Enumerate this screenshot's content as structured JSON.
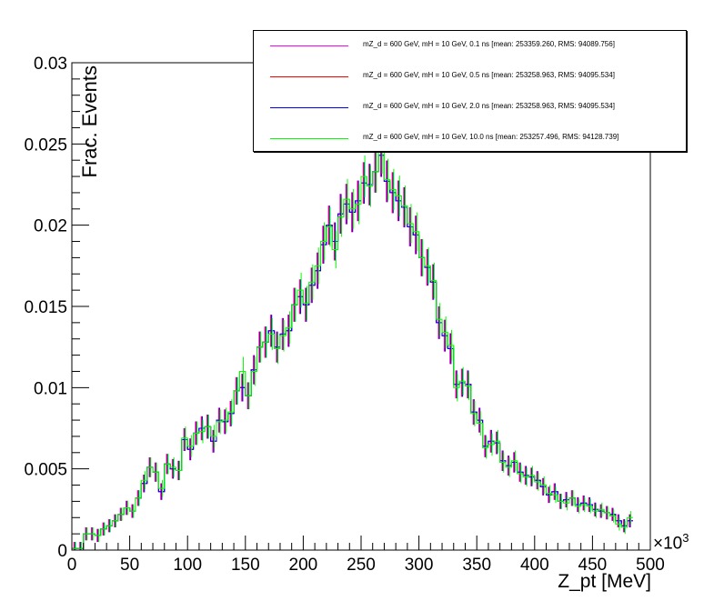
{
  "chart_data": {
    "type": "histogram",
    "xlabel": "Z_pt [MeV]",
    "ylabel": "Frac. Events",
    "x_exponent_label": "×10",
    "x_exponent_power": "3",
    "xlim": [
      0,
      500
    ],
    "ylim": [
      0,
      0.03
    ],
    "bin_width": 5,
    "x_ticks": [
      "0",
      "50",
      "100",
      "150",
      "200",
      "250",
      "300",
      "350",
      "400",
      "450",
      "500"
    ],
    "y_ticks": [
      "0",
      "0.005",
      "0.01",
      "0.015",
      "0.02",
      "0.025",
      "0.03"
    ],
    "legend": [
      {
        "label": "mZ_d = 600 GeV, mH = 10 GeV, 0.1 ns [mean: 253359.260, RMS: 94089.756]",
        "color": "#ff00ff"
      },
      {
        "label": "mZ_d = 600 GeV, mH = 10 GeV, 0.5 ns [mean: 253258.963, RMS: 94095.534]",
        "color": "#ff0000"
      },
      {
        "label": "mZ_d = 600 GeV, mH = 10 GeV, 2.0 ns [mean: 253258.963, RMS: 94095.534]",
        "color": "#0000ff"
      },
      {
        "label": "mZ_d = 600 GeV, mH = 10 GeV, 10.0 ns [mean: 253257.496, RMS: 94128.739]",
        "color": "#00ff00"
      }
    ],
    "series": [
      {
        "name": "0.1 ns",
        "color": "#ff00ff",
        "values": [
          0.0001,
          0.0001,
          0.001,
          0.001,
          0.0009,
          0.0013,
          0.0015,
          0.0018,
          0.0022,
          0.0026,
          0.0024,
          0.0032,
          0.0041,
          0.0051,
          0.0048,
          0.0036,
          0.0053,
          0.005,
          0.0049,
          0.0068,
          0.0062,
          0.0072,
          0.0075,
          0.0076,
          0.0067,
          0.008,
          0.0079,
          0.0084,
          0.0098,
          0.01,
          0.0095,
          0.0111,
          0.0125,
          0.0128,
          0.0135,
          0.0125,
          0.0133,
          0.0135,
          0.0151,
          0.0156,
          0.0151,
          0.0163,
          0.0172,
          0.0188,
          0.02,
          0.019,
          0.0207,
          0.0213,
          0.0208,
          0.0215,
          0.0226,
          0.0225,
          0.0233,
          0.0243,
          0.0227,
          0.022,
          0.0215,
          0.0211,
          0.0199,
          0.0194,
          0.018,
          0.0174,
          0.0165,
          0.014,
          0.0132,
          0.0124,
          0.0102,
          0.0103,
          0.0102,
          0.0085,
          0.008,
          0.0064,
          0.0067,
          0.0066,
          0.0055,
          0.0052,
          0.0054,
          0.0048,
          0.0046,
          0.0045,
          0.0043,
          0.0039,
          0.0034,
          0.0036,
          0.003,
          0.0031,
          0.0032,
          0.0028,
          0.0029,
          0.0028,
          0.0025,
          0.0024,
          0.0023,
          0.0022,
          0.0018,
          0.0015,
          0.0018
        ]
      },
      {
        "name": "0.5 ns",
        "color": "#ff0000",
        "values": [
          0.0001,
          0.0001,
          0.001,
          0.001,
          0.0009,
          0.0013,
          0.0015,
          0.0018,
          0.0022,
          0.0026,
          0.0024,
          0.0032,
          0.0041,
          0.0051,
          0.0048,
          0.0036,
          0.0053,
          0.005,
          0.0049,
          0.0068,
          0.0062,
          0.0072,
          0.0075,
          0.0076,
          0.0067,
          0.008,
          0.0079,
          0.0084,
          0.0098,
          0.01,
          0.0095,
          0.0111,
          0.0125,
          0.0128,
          0.0135,
          0.0125,
          0.0133,
          0.0135,
          0.0151,
          0.0156,
          0.0151,
          0.0163,
          0.0172,
          0.0188,
          0.02,
          0.019,
          0.0207,
          0.0213,
          0.0208,
          0.0215,
          0.0226,
          0.0225,
          0.0233,
          0.0243,
          0.0227,
          0.022,
          0.0215,
          0.0211,
          0.0199,
          0.0194,
          0.018,
          0.0174,
          0.0165,
          0.014,
          0.0132,
          0.0124,
          0.0102,
          0.0103,
          0.0102,
          0.0085,
          0.008,
          0.0064,
          0.0067,
          0.0066,
          0.0055,
          0.0052,
          0.0054,
          0.0048,
          0.0046,
          0.0045,
          0.0043,
          0.0039,
          0.0034,
          0.0036,
          0.003,
          0.0031,
          0.0032,
          0.0028,
          0.0029,
          0.0028,
          0.0025,
          0.0024,
          0.0023,
          0.0022,
          0.0018,
          0.0015,
          0.0018
        ]
      },
      {
        "name": "2.0 ns",
        "color": "#0000ff",
        "values": [
          0.0001,
          0.0001,
          0.001,
          0.001,
          0.0009,
          0.0013,
          0.0015,
          0.0018,
          0.0022,
          0.0026,
          0.0024,
          0.0032,
          0.0041,
          0.0051,
          0.0048,
          0.0036,
          0.0053,
          0.005,
          0.0049,
          0.0068,
          0.0062,
          0.0072,
          0.0075,
          0.0076,
          0.0067,
          0.008,
          0.0079,
          0.0084,
          0.0098,
          0.01,
          0.0095,
          0.0111,
          0.0125,
          0.0128,
          0.0135,
          0.0125,
          0.0133,
          0.0135,
          0.0151,
          0.0156,
          0.0151,
          0.0163,
          0.0172,
          0.0188,
          0.02,
          0.019,
          0.0207,
          0.0213,
          0.0208,
          0.0215,
          0.0226,
          0.0225,
          0.0233,
          0.0243,
          0.0227,
          0.022,
          0.0215,
          0.0211,
          0.0199,
          0.0194,
          0.018,
          0.0174,
          0.0165,
          0.014,
          0.0132,
          0.0124,
          0.0102,
          0.0103,
          0.0102,
          0.0085,
          0.008,
          0.0064,
          0.0067,
          0.0066,
          0.0055,
          0.0052,
          0.0054,
          0.0048,
          0.0046,
          0.0045,
          0.0043,
          0.0039,
          0.0034,
          0.0036,
          0.003,
          0.0031,
          0.0032,
          0.0028,
          0.0029,
          0.0028,
          0.0025,
          0.0024,
          0.0023,
          0.0022,
          0.0018,
          0.0015,
          0.0018
        ]
      },
      {
        "name": "10.0 ns",
        "color": "#00ff00",
        "values": [
          0.0001,
          0.0001,
          0.001,
          0.001,
          0.0009,
          0.0013,
          0.0015,
          0.0018,
          0.0022,
          0.0026,
          0.0024,
          0.0032,
          0.0043,
          0.0051,
          0.0048,
          0.0038,
          0.0053,
          0.0051,
          0.0049,
          0.0069,
          0.0064,
          0.0072,
          0.0073,
          0.0076,
          0.007,
          0.0079,
          0.008,
          0.0085,
          0.0098,
          0.011,
          0.0095,
          0.011,
          0.0125,
          0.0128,
          0.0133,
          0.0124,
          0.0132,
          0.0137,
          0.0151,
          0.016,
          0.0152,
          0.0165,
          0.0175,
          0.019,
          0.0199,
          0.0185,
          0.0205,
          0.0216,
          0.021,
          0.0213,
          0.023,
          0.0224,
          0.0233,
          0.0245,
          0.0228,
          0.0222,
          0.0218,
          0.0212,
          0.0201,
          0.0196,
          0.018,
          0.0175,
          0.0166,
          0.0142,
          0.0134,
          0.0126,
          0.01,
          0.0104,
          0.0101,
          0.0084,
          0.0078,
          0.0063,
          0.0065,
          0.0067,
          0.0054,
          0.0051,
          0.0055,
          0.0047,
          0.0045,
          0.0046,
          0.0042,
          0.004,
          0.0035,
          0.0034,
          0.003,
          0.0029,
          0.0032,
          0.0027,
          0.0028,
          0.0027,
          0.0024,
          0.0025,
          0.0023,
          0.0021,
          0.0016,
          0.0014,
          0.002
        ]
      }
    ]
  }
}
